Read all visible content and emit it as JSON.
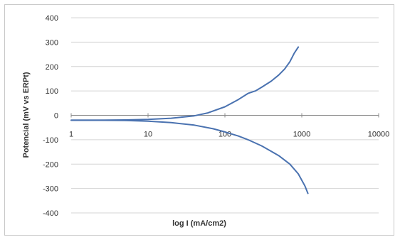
{
  "chart_data": {
    "type": "line",
    "title": "",
    "xlabel": "log  I (mA/cm2)",
    "ylabel": "Potencial (mV vs ERPt)",
    "x_scale": "log",
    "xlim": [
      1,
      10000
    ],
    "ylim": [
      -400,
      400
    ],
    "x_ticks": [
      "1",
      "10",
      "100",
      "1000",
      "10000"
    ],
    "y_ticks": [
      "400",
      "300",
      "200",
      "100",
      "0",
      "-100",
      "-200",
      "-300",
      "-400"
    ],
    "grid": "horizontal",
    "legend": "none",
    "line_color": "#4a72b0",
    "series": [
      {
        "values": [
          [
            1,
            -20
          ],
          [
            2,
            -20
          ],
          [
            5,
            -19
          ],
          [
            10,
            -17
          ],
          [
            20,
            -12
          ],
          [
            40,
            -2
          ],
          [
            60,
            10
          ],
          [
            100,
            35
          ],
          [
            150,
            65
          ],
          [
            200,
            90
          ],
          [
            250,
            100
          ],
          [
            300,
            115
          ],
          [
            400,
            140
          ],
          [
            500,
            165
          ],
          [
            600,
            190
          ],
          [
            700,
            220
          ],
          [
            800,
            255
          ],
          [
            900,
            280
          ]
        ]
      },
      {
        "values": [
          [
            1,
            -20
          ],
          [
            2,
            -20
          ],
          [
            5,
            -21
          ],
          [
            10,
            -24
          ],
          [
            20,
            -30
          ],
          [
            40,
            -40
          ],
          [
            70,
            -55
          ],
          [
            100,
            -68
          ],
          [
            150,
            -85
          ],
          [
            200,
            -100
          ],
          [
            300,
            -125
          ],
          [
            500,
            -165
          ],
          [
            700,
            -200
          ],
          [
            900,
            -240
          ],
          [
            1100,
            -290
          ],
          [
            1200,
            -320
          ]
        ]
      }
    ]
  }
}
